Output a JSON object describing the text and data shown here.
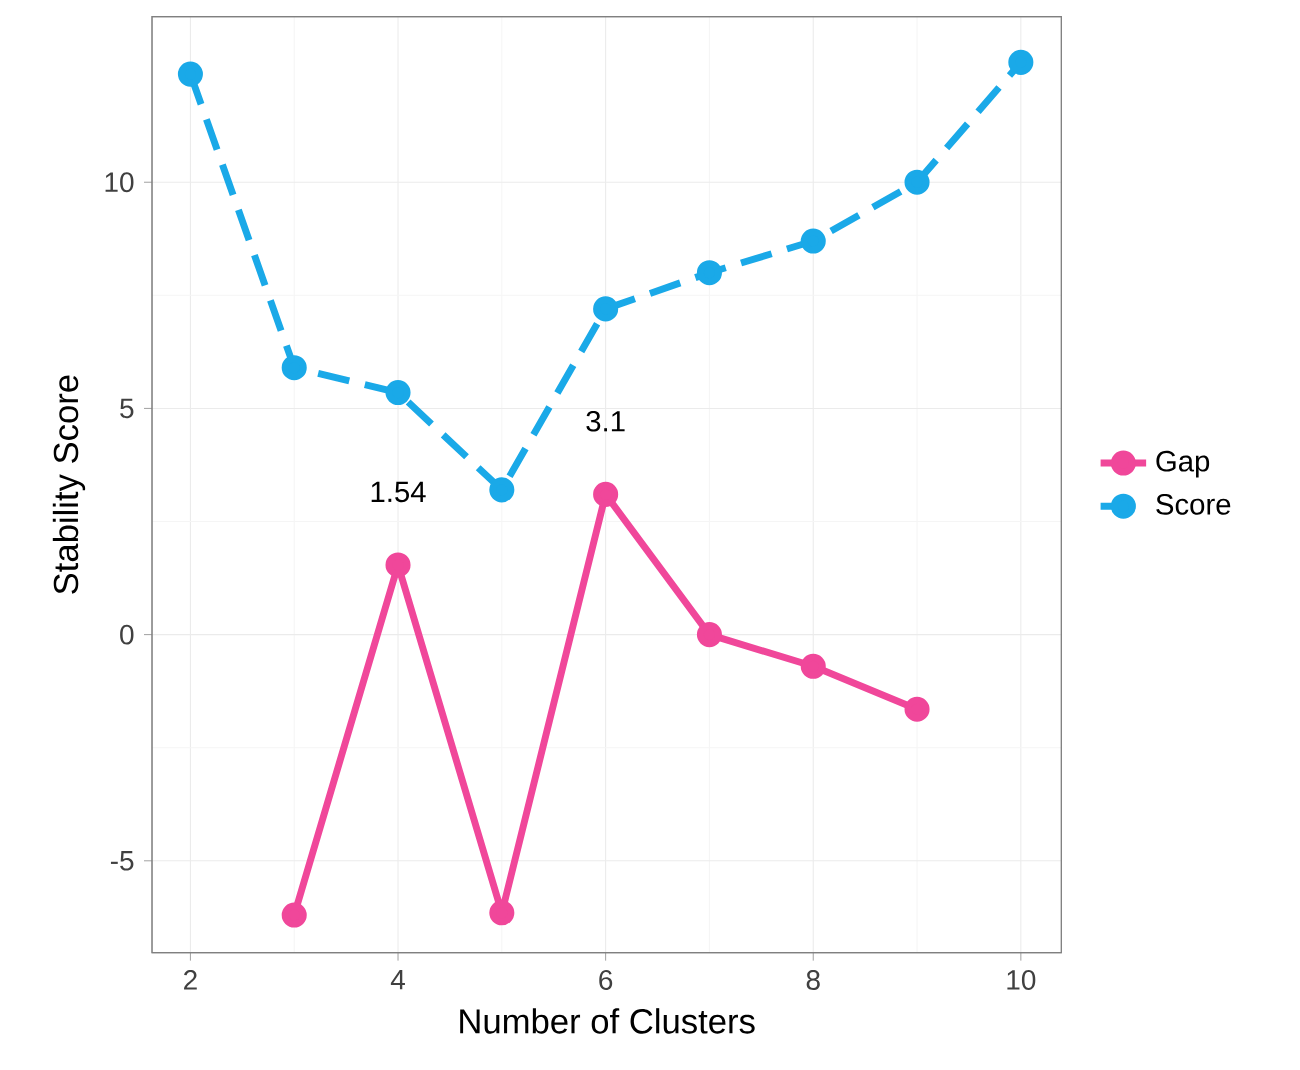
{
  "chart_data": {
    "type": "line",
    "xlabel": "Number of Clusters",
    "ylabel": "Stability Score",
    "xlim": [
      1.63,
      10.39
    ],
    "ylim": [
      -7.03,
      13.66
    ],
    "xticks": [
      2,
      4,
      6,
      8,
      10
    ],
    "yticks": [
      -5,
      0,
      5,
      10
    ],
    "grid": true,
    "legend": "right",
    "marker": "circle",
    "series": [
      {
        "name": "Gap",
        "color": "#f0479a",
        "line_style": "solid",
        "x": [
          3,
          4,
          5,
          6,
          7,
          8,
          9
        ],
        "values": [
          -6.2,
          1.54,
          -6.15,
          3.1,
          0.0,
          -0.7,
          -1.65
        ]
      },
      {
        "name": "Score",
        "color": "#1aa9e8",
        "line_style": "dashed",
        "x": [
          2,
          3,
          4,
          5,
          6,
          7,
          8,
          9,
          10
        ],
        "values": [
          12.39,
          5.9,
          5.35,
          3.2,
          7.2,
          8.0,
          8.7,
          10.0,
          12.65
        ]
      }
    ],
    "annotations": [
      {
        "text": "1.54",
        "x": 4,
        "y": 1.54
      },
      {
        "text": "3.1",
        "x": 6,
        "y": 3.1
      }
    ]
  }
}
